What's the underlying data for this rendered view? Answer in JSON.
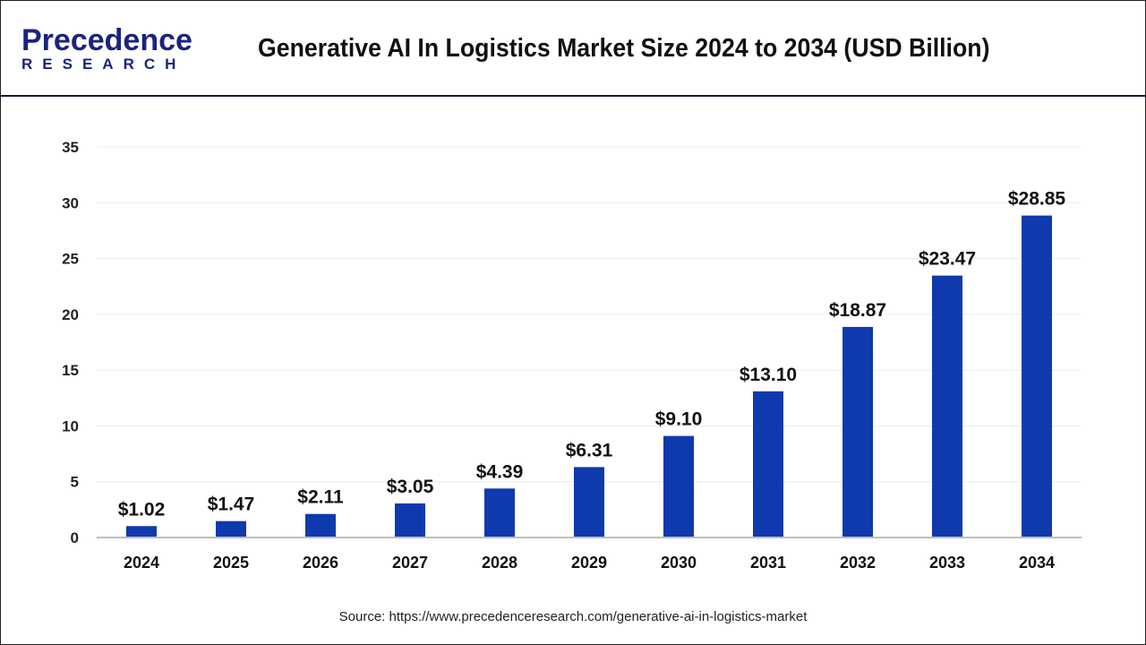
{
  "header": {
    "logo_top": "Precedence",
    "logo_bottom": "RESEARCH",
    "title": "Generative AI In Logistics Market Size 2024 to 2034 (USD Billion)"
  },
  "chart_data": {
    "type": "bar",
    "title": "Generative AI In Logistics Market Size 2024 to 2034 (USD Billion)",
    "categories": [
      "2024",
      "2025",
      "2026",
      "2027",
      "2028",
      "2029",
      "2030",
      "2031",
      "2032",
      "2033",
      "2034"
    ],
    "values": [
      1.02,
      1.47,
      2.11,
      3.05,
      4.39,
      6.31,
      9.1,
      13.1,
      18.87,
      23.47,
      28.85
    ],
    "data_labels": [
      "$1.02",
      "$1.47",
      "$2.11",
      "$3.05",
      "$4.39",
      "$6.31",
      "$9.10",
      "$13.10",
      "$18.87",
      "$23.47",
      "$28.85"
    ],
    "ylim": [
      0,
      35
    ],
    "yticks": [
      0,
      5,
      10,
      15,
      20,
      25,
      30,
      35
    ],
    "grid": true,
    "bar_color": "#0f3aad"
  },
  "source": "Source: https://www.precedenceresearch.com/generative-ai-in-logistics-market"
}
